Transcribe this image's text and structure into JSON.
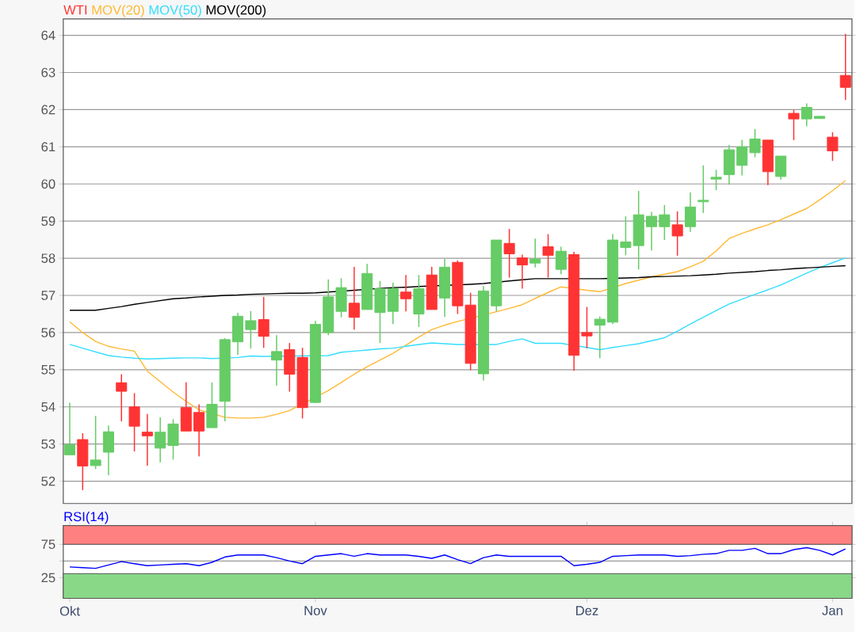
{
  "chart_data": [
    {
      "type": "candlestick",
      "legend": "top left",
      "grid": "y",
      "tick_labels": "y",
      "categories": [
        null,
        null,
        null,
        null,
        null,
        null,
        null,
        null,
        null,
        null,
        null,
        null,
        null,
        null,
        null,
        null,
        null,
        null,
        null,
        null,
        null,
        null,
        null,
        null,
        null,
        null,
        null,
        null,
        null,
        null,
        null,
        null,
        null,
        null,
        null,
        null,
        null,
        null,
        null,
        null,
        null,
        null,
        null,
        null,
        null,
        null,
        null,
        null,
        null,
        null,
        null,
        null,
        null,
        null,
        null,
        null,
        null,
        null,
        null,
        null,
        null
      ],
      "ylim": [
        51.4,
        64.44
      ],
      "yticks": [
        52,
        53,
        54,
        55,
        56,
        57,
        58,
        59,
        60,
        61,
        62,
        63,
        64
      ],
      "series": [
        {
          "name": "WTI",
          "type": "candlestick",
          "color": "#ff3333",
          "colors": [
            "#66cc66",
            "#ff3333",
            "#66cc66",
            "#66cc66",
            "#ff3333",
            "#ff3333",
            "#ff3333",
            "#66cc66",
            "#66cc66",
            "#ff3333",
            "#ff3333",
            "#66cc66",
            "#66cc66",
            "#66cc66",
            "#66cc66",
            "#ff3333",
            "#66cc66",
            "#ff3333",
            "#ff3333",
            "#66cc66",
            "#66cc66",
            "#66cc66",
            "#ff3333",
            "#66cc66",
            "#66cc66",
            "#66cc66",
            "#ff3333",
            "#66cc66",
            "#ff3333",
            "#66cc66",
            "#ff3333",
            "#ff3333",
            "#66cc66",
            "#66cc66",
            "#ff3333",
            "#ff3333",
            "#66cc66",
            "#ff3333",
            "#66cc66",
            "#ff3333",
            "#ff3333",
            "#66cc66",
            "#66cc66",
            "#66cc66",
            "#66cc66",
            "#66cc66",
            "#66cc66",
            "#ff3333",
            "#66cc66",
            "#66cc66",
            "#66cc66",
            "#66cc66",
            "#66cc66",
            "#66cc66",
            "#ff3333",
            "#66cc66",
            "#ff3333",
            "#66cc66",
            "#66cc66",
            "#ff3333",
            "#ff3333"
          ],
          "ohlc": [
            [
              52.71,
              54.11,
              52.71,
              52.98
            ],
            [
              53.12,
              53.29,
              51.76,
              52.41
            ],
            [
              52.42,
              53.76,
              52.33,
              52.57
            ],
            [
              52.78,
              53.5,
              52.16,
              53.33
            ],
            [
              54.65,
              54.88,
              53.61,
              54.42
            ],
            [
              54.0,
              54.37,
              52.8,
              53.48
            ],
            [
              53.32,
              53.81,
              52.42,
              53.22
            ],
            [
              52.89,
              53.72,
              52.51,
              53.32
            ],
            [
              52.96,
              53.67,
              52.58,
              53.54
            ],
            [
              53.98,
              54.66,
              53.35,
              53.35
            ],
            [
              53.85,
              54.07,
              52.67,
              53.35
            ],
            [
              53.44,
              54.66,
              53.44,
              54.07
            ],
            [
              54.15,
              55.85,
              53.61,
              55.81
            ],
            [
              55.75,
              56.53,
              55.4,
              56.44
            ],
            [
              56.08,
              56.58,
              55.57,
              56.32
            ],
            [
              56.35,
              56.96,
              55.59,
              55.9
            ],
            [
              55.26,
              55.93,
              54.57,
              55.49
            ],
            [
              55.54,
              55.72,
              54.41,
              54.88
            ],
            [
              55.33,
              55.59,
              53.69,
              53.98
            ],
            [
              54.12,
              56.32,
              54.1,
              56.22
            ],
            [
              56.0,
              57.43,
              55.93,
              56.96
            ],
            [
              56.57,
              57.46,
              56.41,
              57.21
            ],
            [
              56.79,
              57.77,
              56.08,
              56.41
            ],
            [
              56.62,
              57.85,
              56.62,
              57.59
            ],
            [
              56.54,
              57.39,
              55.72,
              57.18
            ],
            [
              56.57,
              57.34,
              56.23,
              57.18
            ],
            [
              57.09,
              57.55,
              56.57,
              56.91
            ],
            [
              56.5,
              57.55,
              56.15,
              57.18
            ],
            [
              57.55,
              57.77,
              56.62,
              56.62
            ],
            [
              56.93,
              57.98,
              56.42,
              57.76
            ],
            [
              57.89,
              57.94,
              56.5,
              56.72
            ],
            [
              56.74,
              57.07,
              54.99,
              55.17
            ],
            [
              54.89,
              57.25,
              54.71,
              57.12
            ],
            [
              56.72,
              58.49,
              56.57,
              58.49
            ],
            [
              58.4,
              58.79,
              57.48,
              58.12
            ],
            [
              58.01,
              58.1,
              57.18,
              57.82
            ],
            [
              57.87,
              58.53,
              57.75,
              57.98
            ],
            [
              58.31,
              58.65,
              57.48,
              58.08
            ],
            [
              57.7,
              58.31,
              57.57,
              58.19
            ],
            [
              58.1,
              58.17,
              54.97,
              55.39
            ],
            [
              56.0,
              56.69,
              55.58,
              55.91
            ],
            [
              56.2,
              56.43,
              55.31,
              56.36
            ],
            [
              56.28,
              58.65,
              56.23,
              58.49
            ],
            [
              58.29,
              59.13,
              58.08,
              58.44
            ],
            [
              58.34,
              59.81,
              57.7,
              59.17
            ],
            [
              58.85,
              59.25,
              58.21,
              59.13
            ],
            [
              58.85,
              59.43,
              58.49,
              59.17
            ],
            [
              58.9,
              59.26,
              58.07,
              58.6
            ],
            [
              58.85,
              59.77,
              58.71,
              59.38
            ],
            [
              59.52,
              60.5,
              59.22,
              59.56
            ],
            [
              60.13,
              60.38,
              59.83,
              60.18
            ],
            [
              60.25,
              61.05,
              59.98,
              60.92
            ],
            [
              60.5,
              61.19,
              60.23,
              61.0
            ],
            [
              60.84,
              61.48,
              60.72,
              61.21
            ],
            [
              61.18,
              61.18,
              59.97,
              60.33
            ],
            [
              60.2,
              60.75,
              60.11,
              60.75
            ],
            [
              61.9,
              61.99,
              61.18,
              61.75
            ],
            [
              61.75,
              62.17,
              61.55,
              62.06
            ],
            [
              61.76,
              61.82,
              61.76,
              61.82
            ],
            [
              61.26,
              61.39,
              60.62,
              60.89
            ],
            [
              62.92,
              64.04,
              62.26,
              62.6
            ]
          ]
        },
        {
          "name": "MOV(20)",
          "type": "line",
          "color": "#ffb833",
          "values": [
            56.29,
            56.0,
            55.76,
            55.63,
            55.56,
            55.5,
            54.96,
            54.68,
            54.4,
            54.15,
            53.92,
            null,
            53.72,
            53.7,
            53.7,
            53.72,
            53.8,
            53.9,
            null,
            null,
            54.44,
            54.66,
            54.88,
            55.08,
            55.26,
            55.44,
            55.66,
            55.88,
            56.08,
            56.2,
            56.3,
            null,
            null,
            56.56,
            56.65,
            56.75,
            56.92,
            57.08,
            57.23,
            null,
            57.14,
            57.1,
            null,
            57.32,
            57.41,
            57.5,
            57.57,
            57.64,
            57.77,
            57.92,
            58.2,
            58.53,
            58.67,
            58.79,
            58.9,
            59.04,
            59.19,
            59.34,
            59.57,
            59.82,
            60.09
          ]
        },
        {
          "name": "MOV(50)",
          "type": "line",
          "color": "#33ddff",
          "values": [
            55.68,
            55.58,
            55.48,
            55.38,
            55.34,
            55.31,
            55.29,
            55.3,
            55.31,
            55.32,
            55.32,
            55.3,
            null,
            55.33,
            55.37,
            55.36,
            null,
            null,
            null,
            null,
            55.38,
            55.47,
            55.5,
            55.53,
            55.56,
            55.58,
            55.63,
            55.68,
            55.72,
            55.7,
            55.68,
            null,
            null,
            55.68,
            55.76,
            55.83,
            55.71,
            55.71,
            55.71,
            null,
            55.6,
            55.54,
            55.6,
            55.65,
            55.7,
            55.78,
            55.86,
            56.04,
            56.23,
            56.41,
            56.59,
            56.77,
            56.9,
            57.03,
            57.15,
            57.28,
            57.44,
            57.6,
            57.75,
            57.88,
            58.01
          ]
        },
        {
          "name": "MOV(200)",
          "type": "line",
          "color": "#000000",
          "values": [
            56.6,
            56.6,
            56.6,
            56.65,
            56.7,
            56.76,
            56.81,
            56.86,
            56.91,
            56.93,
            56.96,
            56.98,
            57.0,
            57.01,
            57.03,
            57.04,
            57.05,
            57.06,
            57.06,
            57.07,
            57.09,
            null,
            57.14,
            null,
            57.19,
            57.21,
            57.22,
            57.24,
            null,
            null,
            null,
            57.3,
            57.32,
            null,
            57.39,
            57.42,
            57.45,
            57.45,
            57.45,
            null,
            57.45,
            57.45,
            null,
            57.47,
            57.48,
            57.5,
            57.51,
            57.52,
            57.53,
            57.55,
            57.57,
            57.6,
            57.62,
            57.64,
            57.67,
            57.69,
            57.72,
            57.74,
            57.76,
            57.78,
            57.8
          ]
        }
      ]
    },
    {
      "type": "line",
      "legend": "top left",
      "grid": "y",
      "categories": [
        "Okt",
        null,
        null,
        null,
        null,
        null,
        null,
        null,
        null,
        null,
        null,
        null,
        null,
        null,
        null,
        null,
        null,
        null,
        null,
        "Nov",
        null,
        null,
        null,
        null,
        null,
        null,
        null,
        null,
        null,
        null,
        null,
        null,
        null,
        null,
        null,
        null,
        null,
        null,
        null,
        null,
        "Dez",
        null,
        null,
        null,
        null,
        null,
        null,
        null,
        null,
        null,
        null,
        null,
        null,
        null,
        null,
        null,
        null,
        null,
        null,
        "Jan",
        null
      ],
      "ylim": [
        -6,
        103
      ],
      "yticks": [
        25,
        {
          "value": 50,
          "label": null
        },
        75
      ],
      "bands": [
        {
          "axis": "y",
          "from": 75,
          "to": 103,
          "color": "#ff8080"
        },
        {
          "axis": "y",
          "from": -6,
          "to": 31,
          "color": "#88d888"
        }
      ],
      "series": [
        {
          "name": "RSI(14)",
          "color": "#0000ff",
          "values": [
            41,
            40,
            39,
            44,
            49,
            46,
            43,
            44,
            45,
            46,
            43,
            48,
            56,
            59,
            59,
            59,
            55,
            50,
            46,
            57,
            59,
            61,
            57,
            61,
            59,
            59,
            59,
            57,
            54,
            59,
            52,
            46,
            55,
            59,
            57,
            57,
            57,
            57,
            57,
            43,
            45,
            48,
            57,
            58,
            59,
            59,
            59,
            57,
            58,
            60,
            61,
            66,
            66,
            69,
            61,
            61,
            67,
            70,
            66,
            59,
            68
          ]
        }
      ]
    }
  ]
}
